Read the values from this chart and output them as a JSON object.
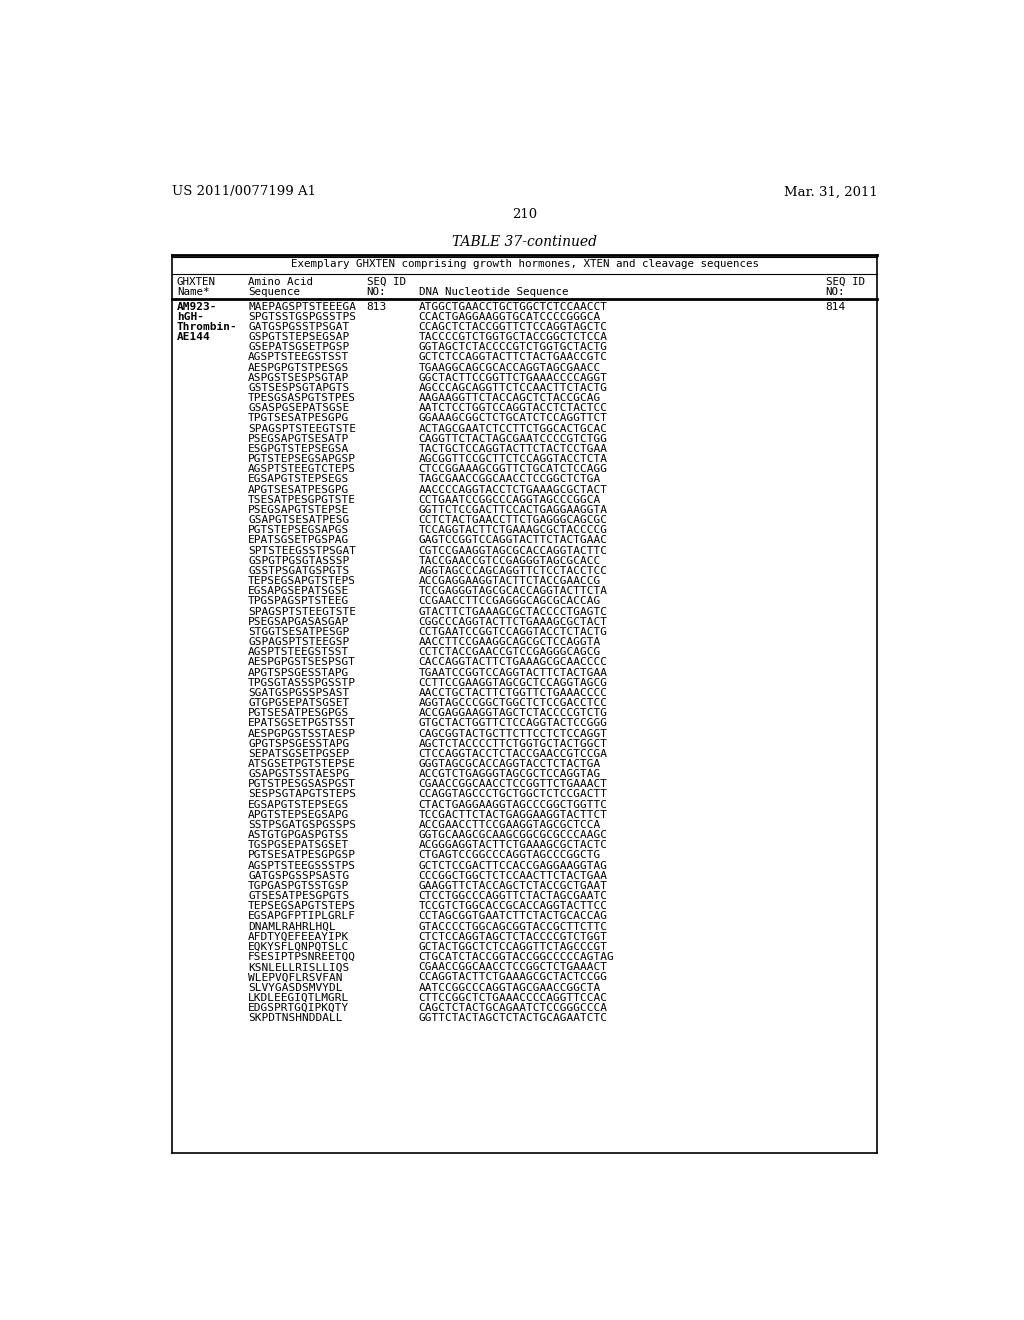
{
  "header_left": "US 2011/0077199 A1",
  "header_right": "Mar. 31, 2011",
  "page_number": "210",
  "table_title": "TABLE 37-continued",
  "table_subtitle": "Exemplary GHXTEN comprising growth hormones, XTEN and cleavage sequences",
  "entry_name_lines": [
    "AM923-",
    "hGH-",
    "Thrombin-",
    "AE144"
  ],
  "entry_seq_id": "813",
  "entry_seq_id2": "814",
  "aa_rows": [
    "MAEPAGSPTSTEEEGA",
    "SPGTSSTGSPGSSTPS",
    "GATGSPGSSTPSGAT",
    "GSPGTSTEPSEGSAP",
    "GSEPATSGSETPGSP",
    "AGSPTSTEEGSTSST",
    "AESPGPGTSTPESGS",
    "ASPGSTSESPSGTAP",
    "GSTSESPSGTAPGTS",
    "TPESGSASPGTSTPES",
    "GSASPGSEPATSGSE",
    "TPGTSESATPESGPG",
    "SPAGSPTSTEEGТSTE",
    "PSEGSAPGTSESATP",
    "ESGPGTSTEPSEGSA",
    "PGTSTEPSEGSAPGSP",
    "AGSPTSTEEGTСТEPS",
    "EGSAPGTSTEPSEGS",
    "APGTSESATPESGPG",
    "TSESATPESGPGTSTE",
    "PSEGSAPGTSTEPSE",
    "GSAPGTSESATPESG",
    "PGTSTEPSEGSAPGS",
    "EPATSGSETPGSPAG",
    "SPTSTEEGSSTPSGAT",
    "GSPGTPGSGTASSSP",
    "GSSTPSGATGSPGTS",
    "TEPSEGSAPGTSTEPS",
    "EGSAPGSEPATSGSE",
    "TPGSPAGSPTSTEEG",
    "SPAGSPTSTEEGТSTE",
    "PSEGSAPGASASGAP",
    "STGGTSESATPESGP",
    "GSPAGSPTSTEEGSP",
    "AGSPTSTEEGSTSST",
    "AESPGPGSTSESPSGT",
    "APGTSPSGESSTAPG",
    "TPGSGTASSSPGSSTP",
    "SGATGSPGSSPSAST",
    "GTGPGSEPATSGSET",
    "PGTSESATPESGPGS",
    "EPATSGSETPGSTSST",
    "AESPGPGSTSSTAЕSP",
    "GPGTSPSGESSTAPG",
    "SEPATSGSETPGSEP",
    "ATSGSETPGTSTEPSE",
    "GSAPGSTSSTAESPG",
    "PGTSTPESGSASPGST",
    "SESPSGTAPGTSTEPS",
    "EGSAPGTSTEPSEGS",
    "APGTSTEPSEGSAPG",
    "SSTPSGATGSPGSSPS",
    "ASTGTGPGASPGTSS",
    "TGSPGSEPATSGSET",
    "PGTSESATPESGPGSP",
    "AGSPTSTEEGSSSTPS",
    "GATGSPGSSPSASTG",
    "TGPGASPGTSSTGSP",
    "GTSESATPESGPGTS",
    "TEPSEGSAPGTSTEPS",
    "EGSAPGFPTIPLGRLF",
    "DNAMLRAHRLHQL",
    "AFDTYQEFEEAYIPK",
    "EQKYSFLQNPQTSLC",
    "FSESIPTPSNREETQQ",
    "KSNLELLRISLLIQS",
    "WLEPVQFLRSVFAN",
    "SLVYGASDSMVYDL",
    "LKDLEEGIQTLMGRL",
    "EDGSPRTGQIPKQTY",
    "SKPDTNSHNDDALL"
  ],
  "dna_rows": [
    "ATGGCTGAACCTGCTGGCTCTCCAACCT",
    "CCACTGAGGAAGGTGCATCCCCGGGCA",
    "CCAGCTCTACCGGTTCTCCAGGTAGCTC",
    "TACCCCGTCTGGTGCTACCGGCTCTCCA",
    "GGTAGCTCTACCCCGTCTGGTGCTACTG",
    "GCTCTCCAGGTACTTCTACTGAACCGTC",
    "TGAAGGCAGCGCACCAGGTAGCGAACC",
    "GGCTACTTCCGGTTCTGAAACCCCAGGT",
    "AGCCCAGCAGGTTCTCCAACTTCTACTG",
    "AAGAAGGTTCTACCAGCTCTACCGCAG",
    "AATCTCCTGGTCCAGGTACCTCTACTCC",
    "GGAAAGCGGCTCTGCATCTCCAGGTTCT",
    "ACTAGCGAATCTCCTTCTGGCACTGCAC",
    "CAGGTTCTACTAGCGAATCCCCGTCTGG",
    "TACTGCTCCAGGTACTTCTACTCCTGAA",
    "AGCGGTTCCGCTTCTCCAGGTACCTCTA",
    "CTCCGGAAAGCGGTTCTGCATCTCCAGG",
    "TAGCGAACCGGCAACCTCCGGCTCTGA",
    "AACCCCAGGTACCTCTGAAAGCGCTACT",
    "CCTGAATCCGGCCCAGGTAGCCCGGCA",
    "GGTTCTCCGACTTCCACTGAGGAAGGTA",
    "CCTCTACTGAACCTTCTGAGGGCAGCGC",
    "TCCAGGTACTTCTGAAAGCGCTACCCCG",
    "GAGTCCGGTCCAGGTACTTCTACTGAAC",
    "CGTCCGAAGGTAGCGCACCAGGTACTTC",
    "TACCGAACCGTCCGAGGGTAGCGCACC",
    "AGGTAGCCCAGCAGGTTCTCCTACCTCC",
    "ACCGAGGAAGGTACTTCTACCGAACCG",
    "TCCGAGGGTAGCGCACCAGGTACTTCTA",
    "CCGAACCTTCCGAGGGCAGCGCACCAG",
    "GTACTTCTGAAAGCGCTACCCCTGAGTC",
    "CGGCCCAGGTACTTCTGAAAGCGCTACT",
    "CCTGAATCCGGTCCAGGTACCTCTACTG",
    "AACCTTCCGAAGGCAGCGCTCCAGGTA",
    "CCTCTACCGAACCGTCCGAGGGCAGCG",
    "CACCAGGTACTTCTGAAAGCGCAACCCC",
    "TGAATCCGGTCCAGGTACTTCTACTGAA",
    "CCTTCCGAAGGTAGCGCTCCAGGTAGCG",
    "AACCTGCTACTTCTGGTTCTGAAACCCC",
    "AGGTAGCCCGGCTGGCTCTCCGACCTCC",
    "ACCGAGGAAGGTAGCTCTACCCCGTCTG",
    "GTGCTACTGGTTCTCCAGGTACTCCGGG",
    "CAGCGGTACTGCTTCTTCCTCTCCAGGT",
    "AGCTCTACCCCTTCTGGTGCTACTGGCT",
    "CTCCAGGTACCTCTACCGAACCGTCCGA",
    "GGGTAGCGCACCAGGTACCTCTACTGA",
    "ACCGTCTGAGGGTAGCGCTCCAGGTAG",
    "CGAACCGGCAACCTCCGGTTCTGAAACT",
    "CCAGGTAGCCCTGCTGGCTCTCCGACTT",
    "CTACTGAGGAAGGTAGCCCGGCTGGTTC",
    "TCCGACTTCTACTGAGGAAGGTACTTCT",
    "ACCGAACCTTCCGAAGGTAGCGCTCCA",
    "GGTGCAAGCGCAAGCGGCGCGCCCAAGC",
    "ACGGGAGGTACTTCTGAAAGCGCTACTC",
    "CTGAGTCCGGCCCAGGTAGCCCGGCTG",
    "GCTCTCCGACTTCCACCGAGGAAGGTAG",
    "CCCGGCTGGCTCTCCAACTTCTACTGAA",
    "GAAGGTTCTACCAGCTCTACCGCTGAAT",
    "CTCCTGGCCCAGGTTCTACTAGCGAATC",
    "TCCGTCTGGCACCGCACCAGGTACTTCC",
    "CCTAGCGGTGAATCTTCTACTGCACCAG",
    "GTACCCCTGGCAGCGGTACCGCTTCTTC",
    "CTCTCCAGGTAGCTCTACCCCGTCTGGT",
    "GCTACTGGCTCTCCAGGTTCTAGCCCGT",
    "CTGCATCTACCGGTACCGGCCCCCAGTAG",
    "CGAACCGGCAACCTCCGGCTCTGAAACT",
    "CCAGGTACTTCTGAAAGCGCTACTCCGG",
    "AATCCGGCCCAGGTAGCGAACCGGCTA",
    "CTTCCGGCTCTGAAACCCCAGGTTCCAC",
    "CAGCTCTACTGCAGAATCTCCGGGCCCA",
    "GGTTCTACTAGCTCTACTGCAGAATCTC"
  ],
  "background_color": "#ffffff",
  "text_color": "#000000"
}
